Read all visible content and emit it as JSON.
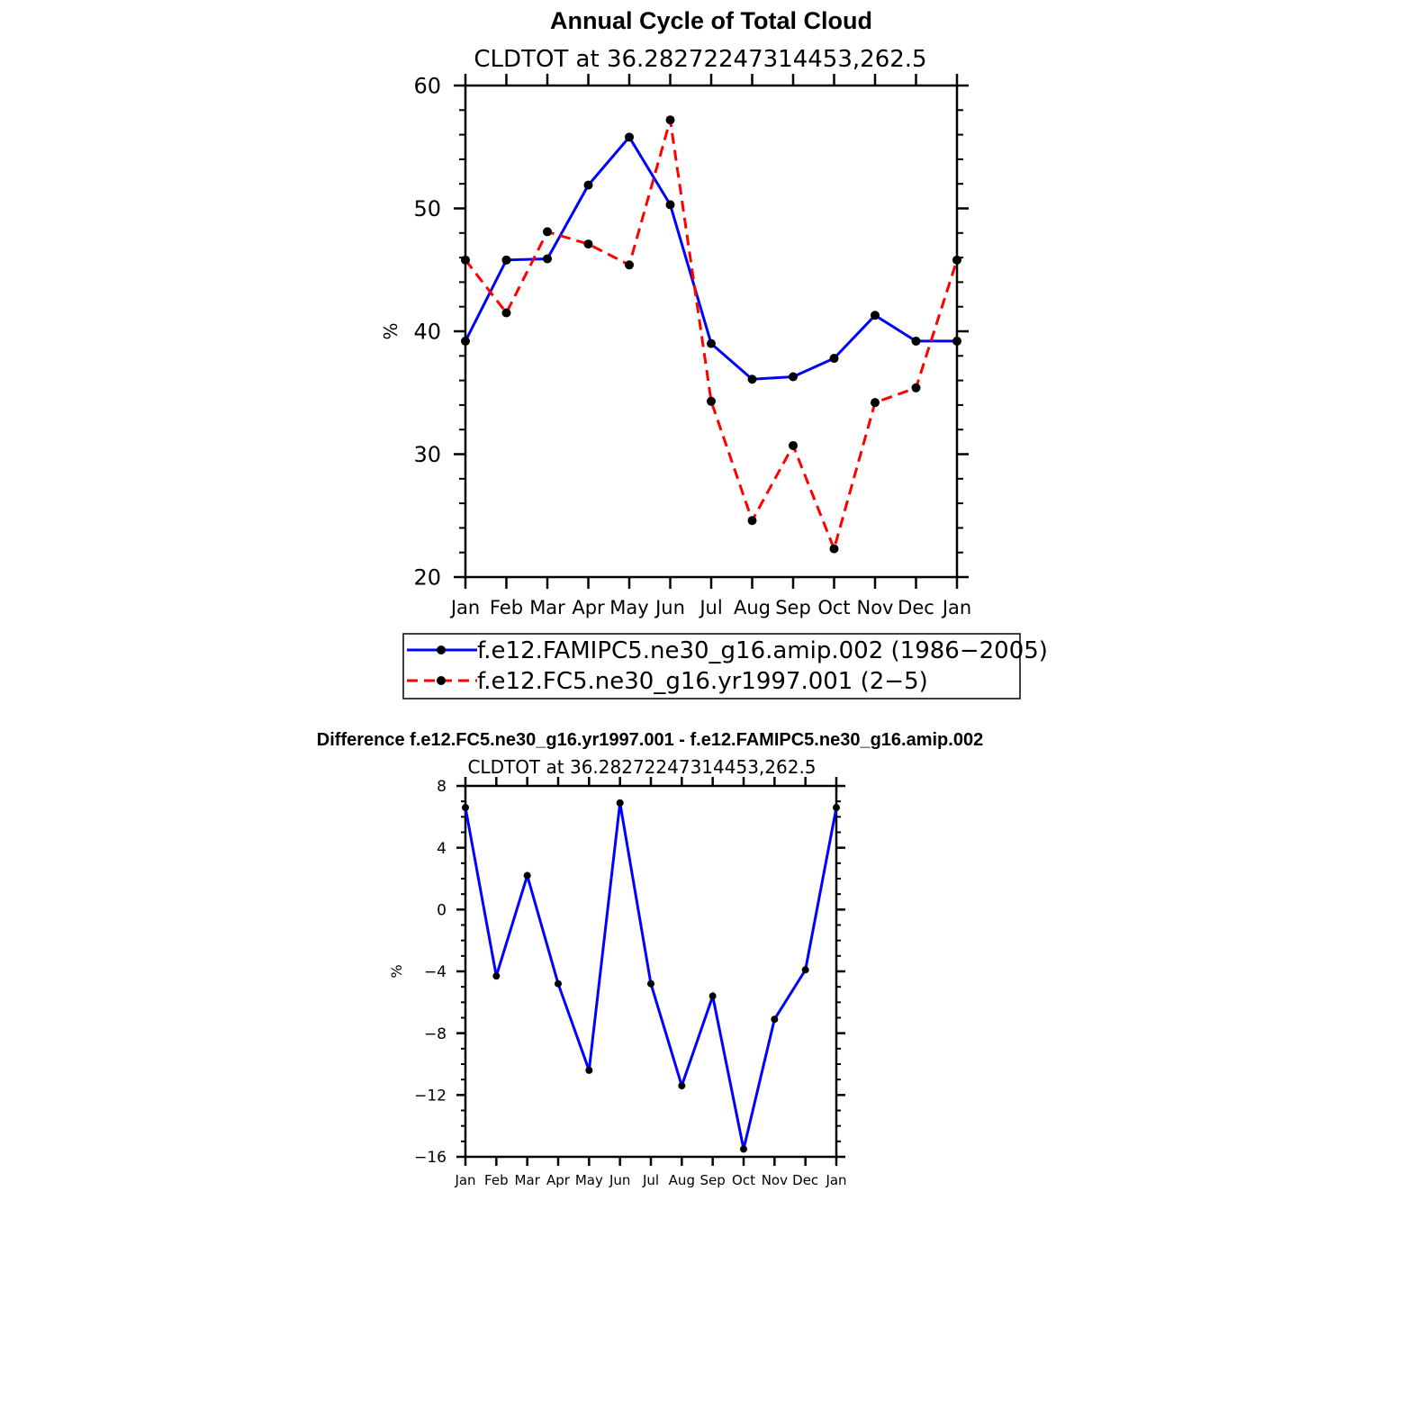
{
  "colors": {
    "series_blue": "#0000ff",
    "series_red": "#ff0000",
    "marker": "#000000",
    "axes": "#000000"
  },
  "chart_data": [
    {
      "type": "line",
      "title": "Annual Cycle of Total Cloud",
      "subtitle": "CLDTOT at 36.28272247314453,262.5",
      "ylabel": "%",
      "ylim": [
        20,
        60
      ],
      "yticks": [
        20,
        30,
        40,
        50,
        60
      ],
      "categories": [
        "Jan",
        "Feb",
        "Mar",
        "Apr",
        "May",
        "Jun",
        "Jul",
        "Aug",
        "Sep",
        "Oct",
        "Nov",
        "Dec",
        "Jan"
      ],
      "series": [
        {
          "name": "f.e12.FAMIPC5.ne30_g16.amip.002 (1986−2005)",
          "style": "solid",
          "color": "#0000ff",
          "values": [
            39.2,
            45.8,
            45.9,
            51.9,
            55.8,
            50.3,
            39.0,
            36.1,
            36.3,
            37.8,
            41.3,
            39.2,
            39.2
          ]
        },
        {
          "name": "f.e12.FC5.ne30_g16.yr1997.001 (2−5)",
          "style": "dashed",
          "color": "#ff0000",
          "values": [
            45.8,
            41.5,
            48.1,
            47.1,
            45.4,
            57.2,
            34.3,
            24.6,
            30.7,
            22.3,
            34.2,
            35.4,
            45.8
          ]
        }
      ],
      "legend": "bottom"
    },
    {
      "type": "line",
      "title": "Difference f.e12.FC5.ne30_g16.yr1997.001 - f.e12.FAMIPC5.ne30_g16.amip.002",
      "subtitle": "CLDTOT at 36.28272247314453,262.5",
      "ylabel": "%",
      "ylim": [
        -16,
        8
      ],
      "yticks": [
        -16,
        -12,
        -8,
        -4,
        0,
        4,
        8
      ],
      "categories": [
        "Jan",
        "Feb",
        "Mar",
        "Apr",
        "May",
        "Jun",
        "Jul",
        "Aug",
        "Sep",
        "Oct",
        "Nov",
        "Dec",
        "Jan"
      ],
      "series": [
        {
          "name": "difference",
          "style": "solid",
          "color": "#0000ff",
          "values": [
            6.6,
            -4.3,
            2.2,
            -4.8,
            -10.4,
            6.9,
            -4.8,
            -11.4,
            -5.6,
            -15.5,
            -7.1,
            -3.9,
            6.6
          ]
        }
      ]
    }
  ]
}
